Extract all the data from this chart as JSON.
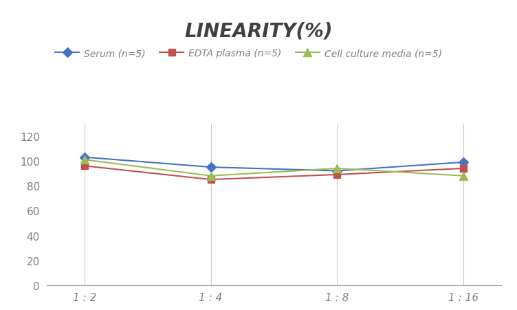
{
  "title": "LINEARITY(%)",
  "x_labels": [
    "1 : 2",
    "1 : 4",
    "1 : 8",
    "1 : 16"
  ],
  "series": [
    {
      "label": "Serum (n=5)",
      "color": "#4472C4",
      "marker": "D",
      "markersize": 7,
      "values": [
        103,
        95,
        92,
        99
      ]
    },
    {
      "label": "EDTA plasma (n=5)",
      "color": "#C0504D",
      "marker": "s",
      "markersize": 7,
      "values": [
        96,
        85,
        89,
        94
      ]
    },
    {
      "label": "Cell culture media (n=5)",
      "color": "#9BBB59",
      "marker": "^",
      "markersize": 8,
      "values": [
        101,
        88,
        94,
        88
      ]
    }
  ],
  "ylim": [
    0,
    130
  ],
  "yticks": [
    0,
    20,
    40,
    60,
    80,
    100,
    120
  ],
  "background_color": "#FFFFFF",
  "grid_color": "#CCCCCC",
  "title_fontsize": 20,
  "legend_fontsize": 10,
  "tick_fontsize": 11,
  "tick_color": "#808080",
  "title_color": "#404040"
}
